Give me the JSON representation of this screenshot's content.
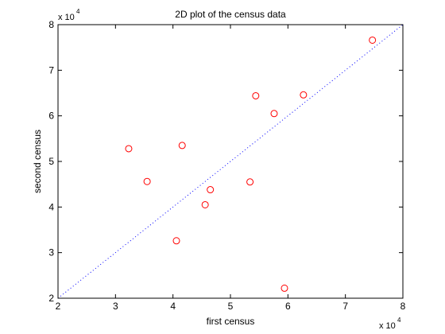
{
  "chart_data": {
    "type": "scatter",
    "title": "2D plot of the census data",
    "xlabel": "first census",
    "ylabel": "second census",
    "x_exponent_label": "x 10",
    "x_exponent_power": "4",
    "y_exponent_label": "x 10",
    "y_exponent_power": "4",
    "xlim": [
      20000,
      80000
    ],
    "ylim": [
      20000,
      80000
    ],
    "xticks": [
      20000,
      30000,
      40000,
      50000,
      60000,
      70000,
      80000
    ],
    "yticks": [
      20000,
      30000,
      40000,
      50000,
      60000,
      70000,
      80000
    ],
    "xtick_labels": [
      "2",
      "3",
      "4",
      "5",
      "6",
      "7",
      "8"
    ],
    "ytick_labels": [
      "2",
      "3",
      "4",
      "5",
      "6",
      "7",
      "8"
    ],
    "grid": false,
    "points": [
      {
        "x": 32300,
        "y": 52800
      },
      {
        "x": 35500,
        "y": 45600
      },
      {
        "x": 40600,
        "y": 32600
      },
      {
        "x": 41600,
        "y": 53500
      },
      {
        "x": 45600,
        "y": 40500
      },
      {
        "x": 46500,
        "y": 43800
      },
      {
        "x": 53400,
        "y": 45500
      },
      {
        "x": 54400,
        "y": 64400
      },
      {
        "x": 57600,
        "y": 60500
      },
      {
        "x": 59400,
        "y": 22200
      },
      {
        "x": 62700,
        "y": 64600
      },
      {
        "x": 74700,
        "y": 76600
      }
    ],
    "reference_line": {
      "x": [
        20000,
        80000
      ],
      "y": [
        20000,
        80000
      ],
      "style": "dotted",
      "color": "#0000ff"
    },
    "marker": {
      "shape": "circle",
      "color": "#ff0000"
    }
  }
}
